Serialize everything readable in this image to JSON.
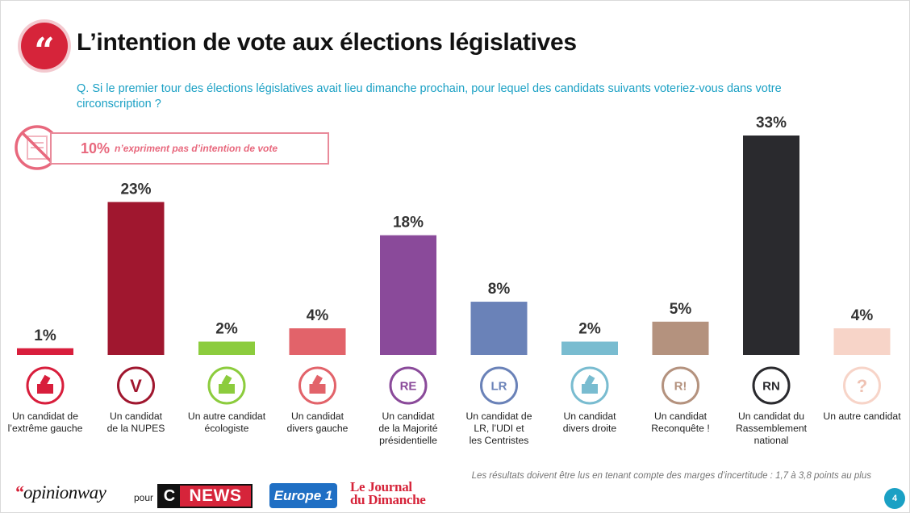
{
  "header": {
    "title": "L’intention de vote aux élections législatives",
    "quote_glyph": "“",
    "question": "Q. Si le premier tour des élections législatives avait lieu dimanche prochain, pour lequel des candidats suivants voteriez-vous dans votre circonscription ?"
  },
  "no_intention": {
    "percent": "10%",
    "text": "n’expriment pas d’intention de vote",
    "icon": "no-vote-icon"
  },
  "chart_data": {
    "type": "bar",
    "title": "L’intention de vote aux élections législatives",
    "xlabel": "",
    "ylabel": "",
    "ylim": [
      0,
      33
    ],
    "unit": "%",
    "grid": false,
    "categories": [
      "Un candidat de l’extrême gauche",
      "Un candidat de la NUPES",
      "Un autre candidat écologiste",
      "Un candidat divers gauche",
      "Un candidat de la Majorité présidentielle",
      "Un candidat de LR, l’UDI et les Centristes",
      "Un candidat divers droite",
      "Un candidat Reconquête !",
      "Un candidat du Rassemblement national",
      "Un autre candidat"
    ],
    "label_lines": [
      [
        "Un candidat de",
        "l’extrême gauche"
      ],
      [
        "Un candidat",
        "de la NUPES"
      ],
      [
        "Un autre candidat",
        "écologiste"
      ],
      [
        "Un candidat",
        "divers gauche"
      ],
      [
        "Un candidat",
        "de la Majorité",
        "présidentielle"
      ],
      [
        "Un candidat de",
        "LR, l’UDI et",
        "les Centristes"
      ],
      [
        "Un candidat",
        "divers droite"
      ],
      [
        "Un candidat",
        "Reconquête !"
      ],
      [
        "Un candidat du",
        "Rassemblement",
        "national"
      ],
      [
        "Un autre candidat"
      ]
    ],
    "values": [
      1,
      23,
      2,
      4,
      18,
      8,
      2,
      5,
      33,
      4
    ],
    "value_labels": [
      "1%",
      "23%",
      "2%",
      "4%",
      "18%",
      "8%",
      "2%",
      "5%",
      "33%",
      "4%"
    ],
    "colors": [
      "#d81e3c",
      "#a0172f",
      "#8ccc3d",
      "#e2636a",
      "#8a4a9a",
      "#6a82b8",
      "#79bcd0",
      "#b4927e",
      "#2a2a2e",
      "#f7d4c8"
    ],
    "icons": [
      "ballot-box-icon",
      "nupes-v-icon",
      "ballot-box-icon",
      "ballot-box-icon",
      "re-logo-icon",
      "lr-logo-icon",
      "ballot-box-icon",
      "reconquete-r-icon",
      "rn-flame-icon",
      "question-mark-icon"
    ],
    "icon_texts": [
      "",
      "V",
      "",
      "",
      "RE",
      "LR",
      "",
      "R!",
      "RN",
      "?"
    ]
  },
  "footnote": "Les résultats doivent être lus en tenant compte des marges d’incertitude : 1,7 à 3,8 points au plus",
  "footer": {
    "logo_opinionway_quote": "“",
    "logo_opinionway_text": "opinionway",
    "pour": "pour",
    "logo_cnews_c": "C",
    "logo_cnews_news": "NEWS",
    "logo_europe1": "Europe 1",
    "logo_jdd_line1": "Le Journal",
    "logo_jdd_line2": "du Dimanche",
    "page_number": "4"
  }
}
